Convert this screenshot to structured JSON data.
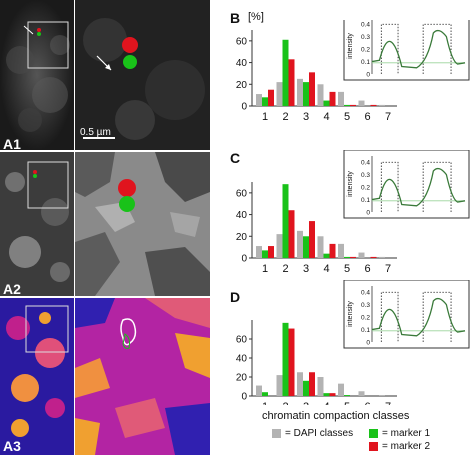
{
  "image_rows": [
    {
      "label": "A1",
      "scale_bar": "0.5 µm"
    },
    {
      "label": "A2"
    },
    {
      "label": "A3"
    }
  ],
  "charts": [
    {
      "letter": "B",
      "yunit": "[%]",
      "yticks": [
        "0",
        "20",
        "40",
        "60"
      ],
      "categories": [
        "1",
        "2",
        "3",
        "4",
        "5",
        "6",
        "7"
      ],
      "series": [
        {
          "key": "dapi",
          "values": [
            11,
            22,
            25,
            20,
            13,
            5,
            1
          ]
        },
        {
          "key": "m1",
          "values": [
            8,
            61,
            22,
            5,
            1,
            0,
            0
          ]
        },
        {
          "key": "m2",
          "values": [
            15,
            43,
            31,
            13,
            1,
            1,
            0
          ]
        }
      ],
      "inset": {
        "ylabel": "intensity",
        "yticks": [
          "0",
          "0.1",
          "0.2",
          "0.3",
          "0.4"
        ]
      }
    },
    {
      "letter": "C",
      "yunit": "",
      "yticks": [
        "0",
        "20",
        "40",
        "60"
      ],
      "categories": [
        "1",
        "2",
        "3",
        "4",
        "5",
        "6",
        "7"
      ],
      "series": [
        {
          "key": "dapi",
          "values": [
            11,
            22,
            25,
            20,
            13,
            5,
            1
          ]
        },
        {
          "key": "m1",
          "values": [
            7,
            68,
            20,
            4,
            1,
            0,
            0
          ]
        },
        {
          "key": "m2",
          "values": [
            11,
            44,
            34,
            13,
            1,
            1,
            0
          ]
        }
      ],
      "inset": {
        "ylabel": "intensity",
        "yticks": [
          "0",
          "0.1",
          "0.2",
          "0.3",
          "0.4"
        ]
      }
    },
    {
      "letter": "D",
      "yunit": "",
      "yticks": [
        "0",
        "20",
        "40",
        "60"
      ],
      "categories": [
        "1",
        "2",
        "3",
        "4",
        "5",
        "6",
        "7"
      ],
      "series": [
        {
          "key": "dapi",
          "values": [
            11,
            22,
            25,
            20,
            13,
            5,
            1
          ]
        },
        {
          "key": "m1",
          "values": [
            4,
            77,
            16,
            3,
            1,
            0,
            0
          ]
        },
        {
          "key": "m2",
          "values": [
            0,
            71,
            25,
            3,
            0,
            0,
            0
          ]
        }
      ],
      "inset": {
        "ylabel": "intensity",
        "yticks": [
          "0",
          "0.1",
          "0.2",
          "0.3",
          "0.4"
        ]
      }
    }
  ],
  "chart_data": [
    {
      "type": "bar",
      "categories": [
        "1",
        "2",
        "3",
        "4",
        "5",
        "6",
        "7"
      ],
      "series": [
        {
          "name": "DAPI classes",
          "values": [
            11,
            22,
            25,
            20,
            13,
            5,
            1
          ]
        },
        {
          "name": "marker 1",
          "values": [
            8,
            61,
            22,
            5,
            1,
            0,
            0
          ]
        },
        {
          "name": "marker 2",
          "values": [
            15,
            43,
            31,
            13,
            1,
            1,
            0
          ]
        }
      ],
      "ylabel": "[%]",
      "ylim": [
        0,
        70
      ]
    },
    {
      "type": "bar",
      "categories": [
        "1",
        "2",
        "3",
        "4",
        "5",
        "6",
        "7"
      ],
      "series": [
        {
          "name": "DAPI classes",
          "values": [
            11,
            22,
            25,
            20,
            13,
            5,
            1
          ]
        },
        {
          "name": "marker 1",
          "values": [
            7,
            68,
            20,
            4,
            1,
            0,
            0
          ]
        },
        {
          "name": "marker 2",
          "values": [
            11,
            44,
            34,
            13,
            1,
            1,
            0
          ]
        }
      ],
      "ylim": [
        0,
        70
      ]
    },
    {
      "type": "bar",
      "categories": [
        "1",
        "2",
        "3",
        "4",
        "5",
        "6",
        "7"
      ],
      "series": [
        {
          "name": "DAPI classes",
          "values": [
            11,
            22,
            25,
            20,
            13,
            5,
            1
          ]
        },
        {
          "name": "marker 1",
          "values": [
            4,
            77,
            16,
            3,
            1,
            0,
            0
          ]
        },
        {
          "name": "marker 2",
          "values": [
            0,
            71,
            25,
            3,
            0,
            0,
            0
          ]
        }
      ],
      "ylim": [
        0,
        80
      ]
    }
  ],
  "xlabel": "chromatin compaction classes",
  "legend": [
    {
      "key": "dapi",
      "text": "= DAPI classes",
      "color": "#b3b3b3"
    },
    {
      "key": "m1",
      "text": "= marker 1",
      "color": "#19c219"
    },
    {
      "key": "m2",
      "text": "= marker 2",
      "color": "#e0141e"
    }
  ],
  "colors": {
    "dapi": "#b3b3b3",
    "m1": "#19c219",
    "m2": "#e0141e",
    "inset_curve": "#3a7a3a"
  }
}
